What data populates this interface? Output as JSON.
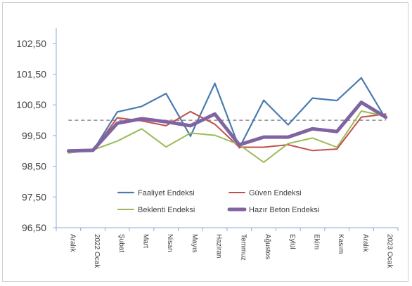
{
  "chart_data": {
    "type": "line",
    "title": "",
    "xlabel": "",
    "ylabel": "",
    "categories": [
      "Aralık",
      "2022 Ocak",
      "Şubat",
      "Mart",
      "Nisan",
      "Mayıs",
      "Haziran",
      "Temmuz",
      "Ağustos",
      "Eylül",
      "Ekim",
      "Kasım",
      "Aralık",
      "2023 Ocak"
    ],
    "y_tick_labels": [
      "96,50",
      "97,50",
      "98,50",
      "99,50",
      "100,50",
      "101,50",
      "102,50"
    ],
    "ylim": [
      96.5,
      102.5
    ],
    "reference_line": 100.0,
    "grid": false,
    "legend_position": "bottom-inside",
    "series": [
      {
        "name": "Faaliyet Endeksi",
        "color": "#4a7bb0",
        "width": 2.2,
        "values": [
          99.0,
          99.0,
          100.27,
          100.45,
          100.87,
          99.48,
          101.2,
          99.1,
          100.65,
          99.85,
          100.72,
          100.64,
          101.38,
          100.05
        ]
      },
      {
        "name": "Güven Endeksi",
        "color": "#c0504d",
        "width": 2.0,
        "values": [
          99.0,
          99.0,
          100.08,
          99.98,
          99.82,
          100.28,
          99.87,
          99.12,
          99.12,
          99.2,
          99.01,
          99.06,
          100.1,
          100.2
        ]
      },
      {
        "name": "Beklenti Endeksi",
        "color": "#9bbb59",
        "width": 2.0,
        "values": [
          98.93,
          99.03,
          99.32,
          99.72,
          99.13,
          99.58,
          99.51,
          99.2,
          98.63,
          99.24,
          99.42,
          99.12,
          100.3,
          100.13
        ]
      },
      {
        "name": "Hazır Beton Endeksi",
        "color": "#8064a2",
        "width": 5,
        "values": [
          99.0,
          99.02,
          99.9,
          100.05,
          99.95,
          99.82,
          100.2,
          99.2,
          99.45,
          99.45,
          99.72,
          99.63,
          100.58,
          100.1
        ]
      }
    ]
  }
}
